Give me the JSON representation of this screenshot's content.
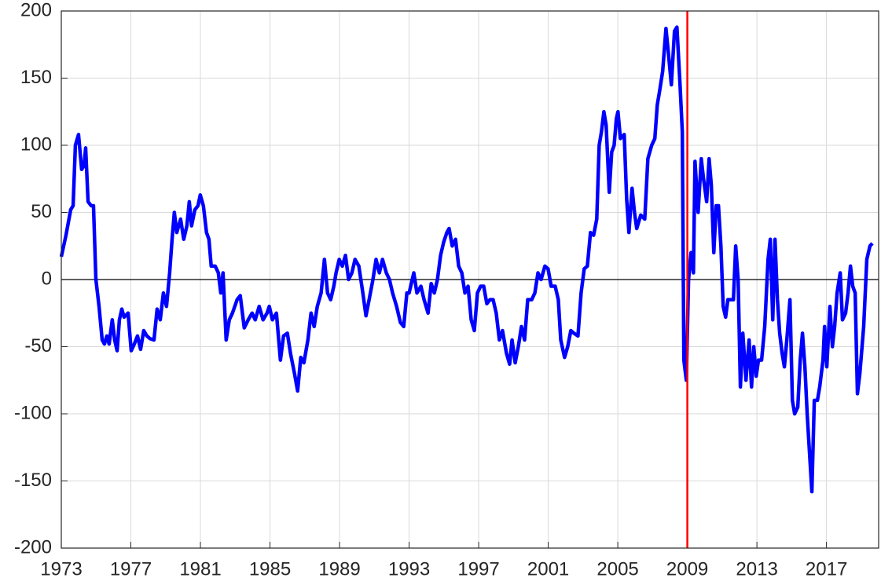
{
  "chart_data": {
    "type": "line",
    "color": "#0000ff",
    "grid": true,
    "xlim": [
      1973,
      2020
    ],
    "ylim": [
      -200,
      200
    ],
    "xticks": [
      1973,
      1977,
      1981,
      1985,
      1989,
      1993,
      1997,
      2001,
      2005,
      2009,
      2013,
      2017
    ],
    "yticks": [
      -200,
      -150,
      -100,
      -50,
      0,
      50,
      100,
      150,
      200
    ],
    "hline": {
      "y": 0,
      "color": "#000000"
    },
    "vline": {
      "x": 2009,
      "color": "#ff0000"
    },
    "x": [
      1973.0,
      1973.27,
      1973.54,
      1973.68,
      1973.81,
      1973.99,
      1974.17,
      1974.31,
      1974.4,
      1974.54,
      1974.72,
      1974.85,
      1974.99,
      1975.17,
      1975.35,
      1975.48,
      1975.62,
      1975.75,
      1975.93,
      1976.07,
      1976.21,
      1976.34,
      1976.48,
      1976.61,
      1976.84,
      1977.02,
      1977.2,
      1977.38,
      1977.56,
      1977.74,
      1977.92,
      1978.1,
      1978.33,
      1978.51,
      1978.69,
      1978.87,
      1979.05,
      1979.23,
      1979.37,
      1979.5,
      1979.64,
      1979.86,
      1980.04,
      1980.22,
      1980.36,
      1980.49,
      1980.68,
      1980.86,
      1980.99,
      1981.17,
      1981.35,
      1981.49,
      1981.62,
      1981.85,
      1982.03,
      1982.17,
      1982.3,
      1982.48,
      1982.66,
      1982.84,
      1983.11,
      1983.29,
      1983.52,
      1983.75,
      1983.97,
      1984.15,
      1984.38,
      1984.6,
      1984.83,
      1984.96,
      1985.14,
      1985.37,
      1985.6,
      1985.78,
      1986.0,
      1986.18,
      1986.41,
      1986.59,
      1986.77,
      1986.95,
      1987.18,
      1987.36,
      1987.54,
      1987.72,
      1987.94,
      1988.13,
      1988.31,
      1988.49,
      1988.67,
      1988.8,
      1988.98,
      1989.16,
      1989.34,
      1989.52,
      1989.71,
      1989.89,
      1990.11,
      1990.34,
      1990.52,
      1990.7,
      1990.92,
      1991.1,
      1991.29,
      1991.47,
      1991.69,
      1991.87,
      1992.05,
      1992.28,
      1992.5,
      1992.69,
      1992.87,
      1993.0,
      1993.27,
      1993.45,
      1993.68,
      1993.86,
      1994.09,
      1994.27,
      1994.45,
      1994.63,
      1994.81,
      1994.99,
      1995.17,
      1995.3,
      1995.48,
      1995.67,
      1995.85,
      1996.03,
      1996.21,
      1996.39,
      1996.57,
      1996.75,
      1996.93,
      1997.11,
      1997.29,
      1997.47,
      1997.65,
      1997.83,
      1998.01,
      1998.19,
      1998.37,
      1998.6,
      1998.78,
      1998.92,
      1999.1,
      1999.28,
      1999.46,
      1999.64,
      1999.82,
      2000.05,
      2000.23,
      2000.41,
      2000.59,
      2000.81,
      2000.99,
      2001.17,
      2001.4,
      2001.58,
      2001.72,
      2001.94,
      2002.12,
      2002.3,
      2002.48,
      2002.71,
      2002.89,
      2003.07,
      2003.25,
      2003.43,
      2003.61,
      2003.79,
      2003.93,
      2004.06,
      2004.2,
      2004.33,
      2004.51,
      2004.65,
      2004.79,
      2004.92,
      2005.01,
      2005.15,
      2005.37,
      2005.51,
      2005.64,
      2005.82,
      2005.96,
      2006.09,
      2006.32,
      2006.55,
      2006.73,
      2006.95,
      2007.13,
      2007.27,
      2007.4,
      2007.58,
      2007.77,
      2007.9,
      2008.08,
      2008.26,
      2008.4,
      2008.58,
      2008.71,
      2008.8,
      2008.94,
      2009.07,
      2009.21,
      2009.35,
      2009.44,
      2009.62,
      2009.8,
      2009.93,
      2010.11,
      2010.25,
      2010.38,
      2010.52,
      2010.66,
      2010.79,
      2010.93,
      2011.06,
      2011.2,
      2011.33,
      2011.47,
      2011.65,
      2011.78,
      2011.92,
      2012.05,
      2012.19,
      2012.37,
      2012.55,
      2012.69,
      2012.82,
      2012.96,
      2013.09,
      2013.27,
      2013.45,
      2013.64,
      2013.77,
      2013.91,
      2014.04,
      2014.18,
      2014.31,
      2014.45,
      2014.58,
      2014.72,
      2014.9,
      2015.04,
      2015.17,
      2015.35,
      2015.49,
      2015.62,
      2015.76,
      2015.89,
      2016.03,
      2016.16,
      2016.3,
      2016.48,
      2016.61,
      2016.8,
      2016.89,
      2017.02,
      2017.2,
      2017.34,
      2017.47,
      2017.61,
      2017.79,
      2017.92,
      2018.1,
      2018.24,
      2018.38,
      2018.51,
      2018.65,
      2018.78,
      2018.92,
      2019.14,
      2019.32,
      2019.5,
      2019.64
    ],
    "values": [
      17,
      33,
      52,
      55,
      100,
      108,
      82,
      85,
      98,
      58,
      55,
      55,
      0,
      -20,
      -45,
      -48,
      -42,
      -48,
      -30,
      -45,
      -53,
      -30,
      -22,
      -28,
      -25,
      -53,
      -48,
      -42,
      -52,
      -38,
      -42,
      -44,
      -45,
      -22,
      -30,
      -10,
      -20,
      5,
      30,
      50,
      35,
      45,
      30,
      40,
      58,
      40,
      52,
      55,
      63,
      55,
      35,
      30,
      10,
      10,
      5,
      -10,
      5,
      -45,
      -30,
      -25,
      -15,
      -12,
      -36,
      -30,
      -25,
      -30,
      -20,
      -30,
      -25,
      -20,
      -30,
      -25,
      -60,
      -42,
      -40,
      -55,
      -70,
      -83,
      -58,
      -62,
      -45,
      -25,
      -35,
      -20,
      -10,
      15,
      -10,
      -15,
      -5,
      5,
      15,
      10,
      18,
      0,
      5,
      15,
      10,
      -10,
      -27,
      -15,
      0,
      15,
      5,
      15,
      5,
      0,
      -10,
      -20,
      -32,
      -35,
      -10,
      -10,
      5,
      -10,
      -5,
      -15,
      -25,
      -3,
      -10,
      0,
      18,
      28,
      35,
      38,
      25,
      30,
      10,
      5,
      -10,
      -5,
      -30,
      -38,
      -10,
      -5,
      -5,
      -18,
      -15,
      -15,
      -25,
      -45,
      -38,
      -55,
      -63,
      -45,
      -62,
      -50,
      -35,
      -45,
      -15,
      -15,
      -10,
      5,
      0,
      10,
      8,
      -5,
      -5,
      -15,
      -45,
      -58,
      -50,
      -38,
      -40,
      -42,
      -10,
      8,
      10,
      35,
      33,
      45,
      100,
      110,
      125,
      115,
      65,
      95,
      100,
      120,
      125,
      105,
      108,
      60,
      35,
      68,
      50,
      38,
      48,
      45,
      90,
      100,
      105,
      130,
      140,
      155,
      187,
      170,
      145,
      185,
      188,
      145,
      110,
      -60,
      -75,
      0,
      20,
      5,
      88,
      50,
      90,
      75,
      58,
      90,
      70,
      20,
      55,
      55,
      25,
      -20,
      -28,
      -15,
      -15,
      -15,
      25,
      0,
      -80,
      -40,
      -75,
      -45,
      -80,
      -50,
      -72,
      -60,
      -60,
      -35,
      15,
      30,
      -30,
      30,
      -15,
      -40,
      -55,
      -65,
      -45,
      -15,
      -90,
      -100,
      -95,
      -60,
      -40,
      -65,
      -100,
      -130,
      -158,
      -90,
      -90,
      -80,
      -60,
      -35,
      -65,
      -20,
      -50,
      -35,
      -10,
      5,
      -30,
      -25,
      -10,
      10,
      -5,
      -10,
      -85,
      -70,
      -35,
      15,
      25,
      27
    ]
  }
}
